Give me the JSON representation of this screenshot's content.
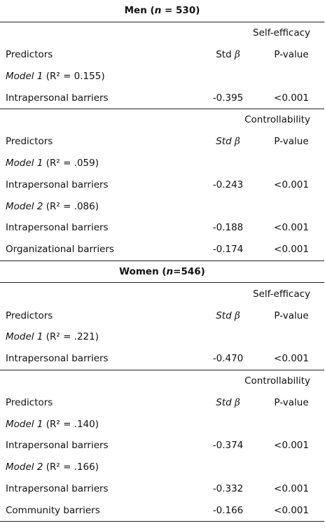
{
  "groups": [
    {
      "title_pre": "Men (",
      "n_letter": "n",
      "title_post": " = 530)",
      "sections": [
        {
          "outcome": "Self-efficacy",
          "header": {
            "predictors": "Predictors",
            "std": "Std",
            "beta": "β",
            "p": "P-value"
          },
          "std_italic": false,
          "models": [
            {
              "label": "Model 1",
              "r2": "(R² = 0.155)",
              "rows": [
                {
                  "predictor": "Intrapersonal barriers",
                  "std_beta": "-0.395",
                  "p": "<0.001"
                }
              ]
            }
          ]
        },
        {
          "outcome": "Controllability",
          "header": {
            "predictors": "Predictors",
            "std": "Std",
            "beta": "β",
            "p": "P-value"
          },
          "std_italic": true,
          "models": [
            {
              "label": "Model 1",
              "r2": "(R² = .059)",
              "rows": [
                {
                  "predictor": "Intrapersonal barriers",
                  "std_beta": "-0.243",
                  "p": "<0.001"
                }
              ]
            },
            {
              "label": "Model 2",
              "r2": "(R² = .086)",
              "rows": [
                {
                  "predictor": "Intrapersonal barriers",
                  "std_beta": "-0.188",
                  "p": "<0.001"
                },
                {
                  "predictor": "Organizational barriers",
                  "std_beta": "-0.174",
                  "p": "<0.001"
                }
              ]
            }
          ]
        }
      ]
    },
    {
      "title_pre": "Women (",
      "n_letter": "n",
      "title_post": "=546)",
      "sections": [
        {
          "outcome": "Self-efficacy",
          "header": {
            "predictors": "Predictors",
            "std": "Std",
            "beta": "β",
            "p": "P-value"
          },
          "std_italic": true,
          "models": [
            {
              "label": "Model 1",
              "r2": "(R² = .221)",
              "rows": [
                {
                  "predictor": "Intrapersonal barriers",
                  "std_beta": "-0.470",
                  "p": "<0.001"
                }
              ]
            }
          ]
        },
        {
          "outcome": "Controllability",
          "header": {
            "predictors": "Predictors",
            "std": "Std",
            "beta": "β",
            "p": "P-value"
          },
          "std_italic": true,
          "models": [
            {
              "label": "Model 1",
              "r2": "(R² = .140)",
              "rows": [
                {
                  "predictor": "Intrapersonal barriers",
                  "std_beta": "-0.374",
                  "p": "<0.001"
                }
              ]
            },
            {
              "label": "Model 2",
              "r2": "(R² = .166)",
              "rows": [
                {
                  "predictor": "Intrapersonal barriers",
                  "std_beta": "-0.332",
                  "p": "<0.001"
                },
                {
                  "predictor": "Community barriers",
                  "std_beta": "-0.166",
                  "p": "<0.001"
                }
              ]
            }
          ]
        }
      ]
    }
  ]
}
